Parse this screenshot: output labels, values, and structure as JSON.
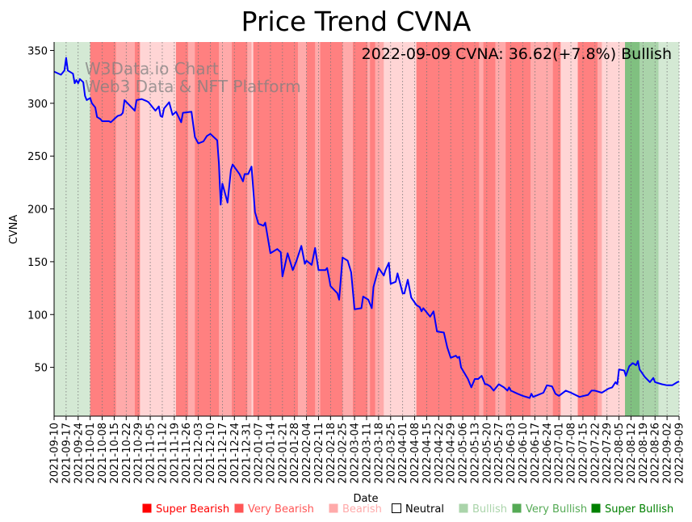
{
  "chart_data": {
    "type": "line",
    "title": "Price Trend CVNA",
    "xlabel": "Date",
    "ylabel": "CVNA",
    "annotation": "2022-09-09 CVNA: 36.62(+7.8%) Bullish",
    "watermark": [
      "W3Data.io Chart",
      "Web3 Data & NFT Platform"
    ],
    "start_date": "2021-09-10",
    "x_unit": "days since start_date",
    "xlim": [
      0,
      364
    ],
    "ylim": [
      3.8,
      358
    ],
    "yticks": [
      50,
      100,
      150,
      200,
      250,
      300,
      350
    ],
    "grid": "x dotted",
    "xtick_labels": [
      "2021-09-10",
      "2021-09-17",
      "2021-09-24",
      "2021-10-01",
      "2021-10-08",
      "2021-10-15",
      "2021-10-22",
      "2021-10-29",
      "2021-11-05",
      "2021-11-12",
      "2021-11-19",
      "2021-11-26",
      "2021-12-03",
      "2021-12-10",
      "2021-12-17",
      "2021-12-24",
      "2021-12-31",
      "2022-01-07",
      "2022-01-14",
      "2022-01-21",
      "2022-01-28",
      "2022-02-04",
      "2022-02-11",
      "2022-02-18",
      "2022-02-25",
      "2022-03-04",
      "2022-03-11",
      "2022-03-18",
      "2022-03-25",
      "2022-04-01",
      "2022-04-08",
      "2022-04-15",
      "2022-04-22",
      "2022-04-29",
      "2022-05-06",
      "2022-05-13",
      "2022-05-20",
      "2022-05-27",
      "2022-06-03",
      "2022-06-10",
      "2022-06-17",
      "2022-06-24",
      "2022-07-01",
      "2022-07-08",
      "2022-07-15",
      "2022-07-22",
      "2022-07-29",
      "2022-08-05",
      "2022-08-12",
      "2022-08-19",
      "2022-08-26",
      "2022-09-02",
      "2022-09-09"
    ],
    "series": [
      {
        "name": "CVNA",
        "color": "#0000ff",
        "points": [
          [
            0,
            330
          ],
          [
            4,
            327
          ],
          [
            6,
            331
          ],
          [
            7,
            343
          ],
          [
            8,
            331
          ],
          [
            11,
            328
          ],
          [
            12,
            319
          ],
          [
            13,
            322
          ],
          [
            14,
            319
          ],
          [
            15,
            323
          ],
          [
            17,
            320
          ],
          [
            18,
            307
          ],
          [
            19,
            303
          ],
          [
            21,
            305
          ],
          [
            22,
            300
          ],
          [
            24,
            296
          ],
          [
            25,
            287
          ],
          [
            27,
            285
          ],
          [
            28,
            283
          ],
          [
            32,
            283
          ],
          [
            33,
            282
          ],
          [
            35,
            285
          ],
          [
            37,
            288
          ],
          [
            39,
            289
          ],
          [
            40,
            291
          ],
          [
            41,
            303
          ],
          [
            44,
            298
          ],
          [
            47,
            293
          ],
          [
            48,
            303
          ],
          [
            51,
            304
          ],
          [
            54,
            302
          ],
          [
            55,
            301
          ],
          [
            58,
            295
          ],
          [
            59,
            293
          ],
          [
            61,
            297
          ],
          [
            62,
            288
          ],
          [
            63,
            287
          ],
          [
            64,
            295
          ],
          [
            67,
            301
          ],
          [
            69,
            289
          ],
          [
            71,
            292
          ],
          [
            74,
            282
          ],
          [
            75,
            291
          ],
          [
            80,
            292
          ],
          [
            82,
            268
          ],
          [
            84,
            262
          ],
          [
            87,
            264
          ],
          [
            89,
            269
          ],
          [
            91,
            271
          ],
          [
            95,
            265
          ],
          [
            96,
            243
          ],
          [
            97,
            204
          ],
          [
            98,
            224
          ],
          [
            101,
            206
          ],
          [
            103,
            237
          ],
          [
            104,
            242
          ],
          [
            108,
            233
          ],
          [
            110,
            226
          ],
          [
            111,
            233
          ],
          [
            113,
            233
          ],
          [
            115,
            240
          ],
          [
            117,
            197
          ],
          [
            119,
            186
          ],
          [
            122,
            184
          ],
          [
            123,
            187
          ],
          [
            126,
            158
          ],
          [
            130,
            162
          ],
          [
            132,
            159
          ],
          [
            133,
            136
          ],
          [
            136,
            158
          ],
          [
            139,
            142
          ],
          [
            141,
            150
          ],
          [
            144,
            165
          ],
          [
            146,
            148
          ],
          [
            147,
            151
          ],
          [
            150,
            147
          ],
          [
            152,
            163
          ],
          [
            154,
            142
          ],
          [
            158,
            142
          ],
          [
            159,
            144
          ],
          [
            160,
            136
          ],
          [
            161,
            127
          ],
          [
            165,
            120
          ],
          [
            166,
            114
          ],
          [
            168,
            154
          ],
          [
            171,
            151
          ],
          [
            173,
            140
          ],
          [
            175,
            105
          ],
          [
            179,
            106
          ],
          [
            180,
            117
          ],
          [
            183,
            114
          ],
          [
            185,
            106
          ],
          [
            186,
            126
          ],
          [
            189,
            144
          ],
          [
            192,
            137
          ],
          [
            193,
            142
          ],
          [
            195,
            149
          ],
          [
            196,
            129
          ],
          [
            199,
            131
          ],
          [
            200,
            139
          ],
          [
            203,
            120
          ],
          [
            204,
            120
          ],
          [
            206,
            133
          ],
          [
            208,
            116
          ],
          [
            211,
            109
          ],
          [
            213,
            107
          ],
          [
            214,
            103
          ],
          [
            215,
            106
          ],
          [
            219,
            98
          ],
          [
            221,
            103
          ],
          [
            223,
            84
          ],
          [
            227,
            83
          ],
          [
            229,
            69
          ],
          [
            231,
            59
          ],
          [
            234,
            61
          ],
          [
            235,
            59
          ],
          [
            236,
            60
          ],
          [
            237,
            50
          ],
          [
            241,
            39
          ],
          [
            243,
            31
          ],
          [
            245,
            39
          ],
          [
            247,
            39
          ],
          [
            249,
            42
          ],
          [
            251,
            34
          ],
          [
            252,
            34
          ],
          [
            254,
            32
          ],
          [
            256,
            28
          ],
          [
            259,
            34
          ],
          [
            262,
            31
          ],
          [
            264,
            28
          ],
          [
            265,
            31
          ],
          [
            266,
            28
          ],
          [
            270,
            25
          ],
          [
            273,
            23
          ],
          [
            277,
            21
          ],
          [
            278,
            25
          ],
          [
            279,
            22
          ],
          [
            285,
            26
          ],
          [
            287,
            33
          ],
          [
            290,
            32
          ],
          [
            292,
            25
          ],
          [
            294,
            23
          ],
          [
            298,
            28
          ],
          [
            301,
            26
          ],
          [
            306,
            22
          ],
          [
            311,
            24
          ],
          [
            313,
            28
          ],
          [
            315,
            28
          ],
          [
            319,
            26
          ],
          [
            323,
            30
          ],
          [
            325,
            31
          ],
          [
            327,
            36
          ],
          [
            328,
            34
          ],
          [
            329,
            48
          ],
          [
            332,
            47
          ],
          [
            333,
            42
          ],
          [
            335,
            51
          ],
          [
            337,
            54
          ],
          [
            339,
            52
          ],
          [
            340,
            56
          ],
          [
            341,
            48
          ],
          [
            344,
            41
          ],
          [
            347,
            36
          ],
          [
            349,
            40
          ],
          [
            350,
            36
          ],
          [
            354,
            34
          ],
          [
            357,
            33
          ],
          [
            360,
            33
          ],
          [
            363,
            36
          ],
          [
            364,
            36.62
          ]
        ]
      }
    ],
    "sentiment_bands": [
      [
        0,
        21,
        "bullish"
      ],
      [
        21,
        36,
        "super_bearish"
      ],
      [
        36,
        47,
        "very_bearish"
      ],
      [
        47,
        50,
        "super_bearish"
      ],
      [
        50,
        71,
        "bearish"
      ],
      [
        71,
        78,
        "super_bearish"
      ],
      [
        78,
        82,
        "very_bearish"
      ],
      [
        82,
        96,
        "super_bearish"
      ],
      [
        96,
        103.5,
        "very_bearish"
      ],
      [
        103.5,
        112.5,
        "super_bearish"
      ],
      [
        112.5,
        115,
        "very_bearish"
      ],
      [
        115,
        116,
        "bearish"
      ],
      [
        116,
        142,
        "super_bearish"
      ],
      [
        142,
        147,
        "very_bearish"
      ],
      [
        147,
        152,
        "super_bearish"
      ],
      [
        152,
        155,
        "very_bearish"
      ],
      [
        155,
        168,
        "super_bearish"
      ],
      [
        168,
        174,
        "very_bearish"
      ],
      [
        174,
        182.5,
        "super_bearish"
      ],
      [
        182.5,
        184,
        "very_bearish"
      ],
      [
        184,
        187,
        "super_bearish"
      ],
      [
        187,
        192,
        "very_bearish"
      ],
      [
        192,
        211,
        "bearish"
      ],
      [
        211,
        247.5,
        "super_bearish"
      ],
      [
        247.5,
        250,
        "very_bearish"
      ],
      [
        250,
        257,
        "super_bearish"
      ],
      [
        257,
        263,
        "very_bearish"
      ],
      [
        263,
        277.5,
        "super_bearish"
      ],
      [
        277.5,
        290.5,
        "very_bearish"
      ],
      [
        290.5,
        295,
        "super_bearish"
      ],
      [
        295,
        305,
        "bearish"
      ],
      [
        305,
        316.5,
        "super_bearish"
      ],
      [
        316.5,
        319,
        "very_bearish"
      ],
      [
        319,
        332.5,
        "bearish"
      ],
      [
        332.5,
        341,
        "super_bullish"
      ],
      [
        341,
        352,
        "very_bullish"
      ],
      [
        352,
        364,
        "bullish"
      ]
    ],
    "legend": {
      "placement": "bottom",
      "entries": [
        {
          "key": "super_bearish",
          "label": "Super Bearish",
          "color": "#ff0000",
          "band": "#ff8080"
        },
        {
          "key": "very_bearish",
          "label": "Very Bearish",
          "color": "#ff5555",
          "band": "#ffaaaa"
        },
        {
          "key": "bearish",
          "label": "Bearish",
          "color": "#ffaaaa",
          "band": "#ffd5d5"
        },
        {
          "key": "neutral",
          "label": "Neutral",
          "color": "#ffffff",
          "band": "#ffffff"
        },
        {
          "key": "bullish",
          "label": "Bullish",
          "color": "#aad4aa",
          "band": "#d4e9d4"
        },
        {
          "key": "very_bullish",
          "label": "Very Bullish",
          "color": "#55aa55",
          "band": "#aad4aa"
        },
        {
          "key": "super_bullish",
          "label": "Super Bullish",
          "color": "#008000",
          "band": "#80c080"
        }
      ]
    }
  }
}
